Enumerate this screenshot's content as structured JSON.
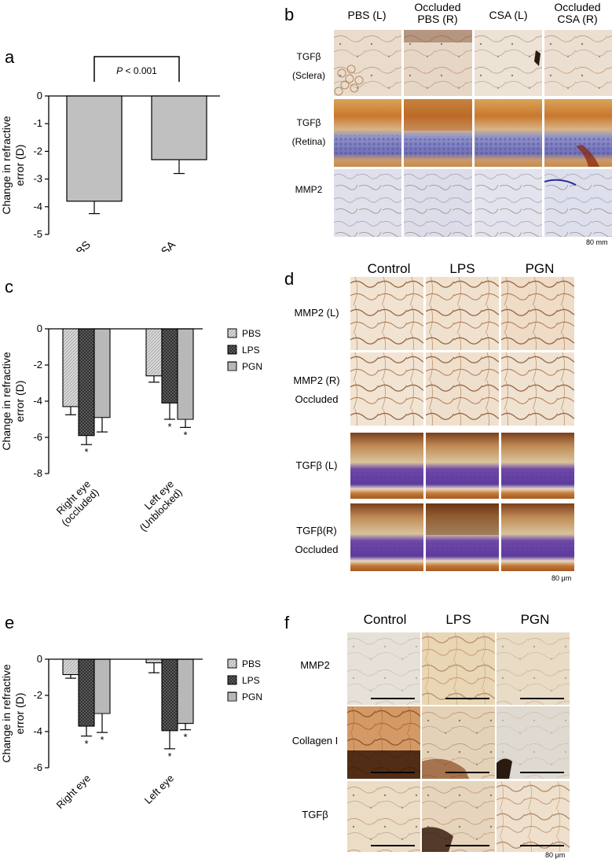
{
  "panels": {
    "a": {
      "letter": "a"
    },
    "b": {
      "letter": "b",
      "columns": [
        "PBS (L)",
        "Occluded\nPBS (R)",
        "CSA (L)",
        "Occluded\nCSA (R)"
      ],
      "rows": [
        "TGFβ\n(Sclera)",
        "TGFβ\n(Retina)",
        "MMP2"
      ],
      "scale": "80 mm"
    },
    "c": {
      "letter": "c"
    },
    "d": {
      "letter": "d",
      "columns": [
        "Control",
        "LPS",
        "PGN"
      ],
      "rows": [
        "MMP2 (L)",
        "MMP2 (R)\nOccluded",
        "TGFβ (L)",
        "TGFβ(R)\nOccluded"
      ],
      "scale": "80 μm"
    },
    "e": {
      "letter": "e"
    },
    "f": {
      "letter": "f",
      "columns": [
        "Control",
        "LPS",
        "PGN"
      ],
      "rows": [
        "MMP2",
        "Collagen I",
        "TGFβ"
      ],
      "scale": "80 μm"
    }
  },
  "chart_data": [
    {
      "id": "a",
      "type": "bar",
      "categories": [
        "PBS",
        "CSA"
      ],
      "values": [
        -3.8,
        -2.3
      ],
      "errors": [
        0.45,
        0.5
      ],
      "ylabel": "Change in refractive\nerror (D)",
      "ylim": [
        -5,
        0
      ],
      "yticks": [
        0,
        -1,
        -2,
        -3,
        -4,
        -5
      ],
      "annotation": "P < 0.001",
      "bar_color": "#c0c0c0"
    },
    {
      "id": "c",
      "type": "bar",
      "categories": [
        "Right eye\n(occluded)",
        "Left eye\n(Unblocked)"
      ],
      "series": [
        {
          "name": "PBS",
          "values": [
            -4.3,
            -2.6
          ],
          "errors": [
            0.45,
            0.35
          ],
          "sig": [
            "",
            ""
          ]
        },
        {
          "name": "LPS",
          "values": [
            -5.9,
            -4.1
          ],
          "errors": [
            0.5,
            0.9
          ],
          "sig": [
            "*",
            "*"
          ]
        },
        {
          "name": "PGN",
          "values": [
            -4.9,
            -5.0
          ],
          "errors": [
            0.8,
            0.45
          ],
          "sig": [
            "",
            "*"
          ]
        }
      ],
      "ylabel": "Change in refractive\nerror (D)",
      "ylim": [
        -8,
        0
      ],
      "yticks": [
        0,
        -2,
        -4,
        -6,
        -8
      ],
      "legend": "right"
    },
    {
      "id": "e",
      "type": "bar",
      "categories": [
        "Right eye",
        "Left eye"
      ],
      "series": [
        {
          "name": "PBS",
          "values": [
            -0.85,
            -0.2
          ],
          "errors": [
            0.2,
            0.55
          ],
          "sig": [
            "",
            ""
          ]
        },
        {
          "name": "LPS",
          "values": [
            -3.7,
            -3.95
          ],
          "errors": [
            0.55,
            1.0
          ],
          "sig": [
            "*",
            "*"
          ]
        },
        {
          "name": "PGN",
          "values": [
            -3.0,
            -3.55
          ],
          "errors": [
            1.05,
            0.35
          ],
          "sig": [
            "*",
            "*"
          ]
        }
      ],
      "ylabel": "Change in refractive\nerror (D)",
      "ylim": [
        -6,
        0
      ],
      "yticks": [
        0,
        -2,
        -4,
        -6
      ],
      "legend": "right"
    }
  ]
}
